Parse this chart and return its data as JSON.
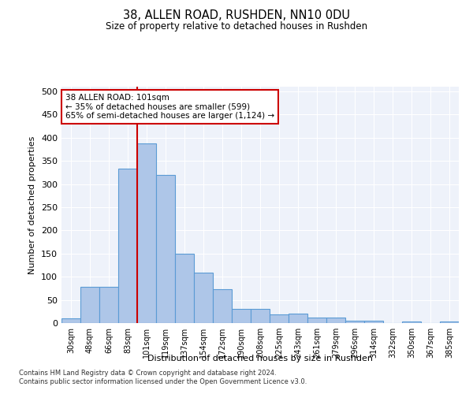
{
  "title": "38, ALLEN ROAD, RUSHDEN, NN10 0DU",
  "subtitle": "Size of property relative to detached houses in Rushden",
  "xlabel": "Distribution of detached houses by size in Rushden",
  "ylabel": "Number of detached properties",
  "bin_labels": [
    "30sqm",
    "48sqm",
    "66sqm",
    "83sqm",
    "101sqm",
    "119sqm",
    "137sqm",
    "154sqm",
    "172sqm",
    "190sqm",
    "208sqm",
    "225sqm",
    "243sqm",
    "261sqm",
    "279sqm",
    "296sqm",
    "314sqm",
    "332sqm",
    "350sqm",
    "367sqm",
    "385sqm"
  ],
  "bar_values": [
    10,
    78,
    78,
    333,
    388,
    320,
    150,
    108,
    73,
    30,
    30,
    18,
    20,
    12,
    12,
    5,
    5,
    0,
    3,
    0,
    3
  ],
  "bar_color": "#aec6e8",
  "bar_edge_color": "#5b9bd5",
  "vline_x_index": 4,
  "vline_color": "#cc0000",
  "annotation_box_text": "38 ALLEN ROAD: 101sqm\n← 35% of detached houses are smaller (599)\n65% of semi-detached houses are larger (1,124) →",
  "annotation_box_color": "#cc0000",
  "ylim": [
    0,
    510
  ],
  "yticks": [
    0,
    50,
    100,
    150,
    200,
    250,
    300,
    350,
    400,
    450,
    500
  ],
  "bg_color": "#eef2fa",
  "footer1": "Contains HM Land Registry data © Crown copyright and database right 2024.",
  "footer2": "Contains public sector information licensed under the Open Government Licence v3.0."
}
